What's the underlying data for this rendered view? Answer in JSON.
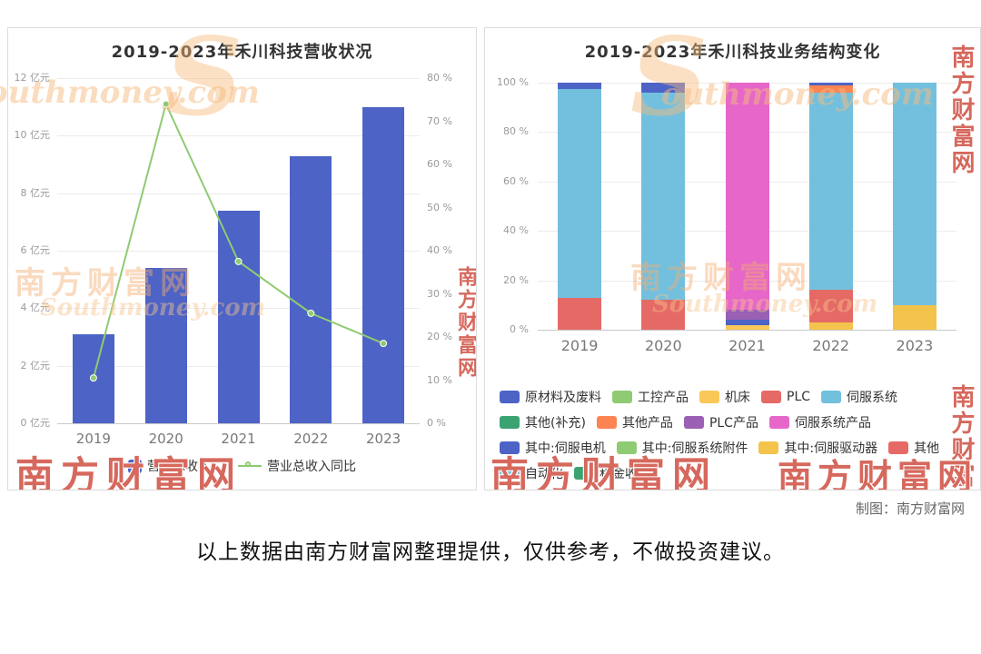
{
  "watermark": {
    "brand_cn": "南方财富网",
    "brand_en": "Southmoney.com",
    "brand_en_partial": "outhmoney.com",
    "s_glyph": "S"
  },
  "footer": {
    "credit": "制图：南方财富网",
    "disclaimer": "以上数据由南方财富网整理提供，仅供参考，不做投资建议。"
  },
  "chart_data": [
    {
      "type": "bar",
      "title": "2019-2023年禾川科技营收状况",
      "categories": [
        "2019",
        "2020",
        "2021",
        "2022",
        "2023"
      ],
      "series": [
        {
          "name": "营业总收入",
          "kind": "bar",
          "unit": "亿元",
          "axis": "left",
          "color": "#4D63C6",
          "values": [
            3.1,
            5.4,
            7.4,
            9.3,
            11.0
          ]
        },
        {
          "name": "营业总收入同比",
          "kind": "line",
          "unit": "%",
          "axis": "right",
          "color": "#8FCB72",
          "values": [
            10.5,
            74,
            37.5,
            25.5,
            18.5
          ]
        }
      ],
      "left_axis": {
        "min": 0,
        "max": 12,
        "ticks": [
          "0 亿元",
          "2 亿元",
          "4 亿元",
          "6 亿元",
          "8 亿元",
          "10 亿元",
          "12 亿元"
        ]
      },
      "right_axis": {
        "min": 0,
        "max": 80,
        "ticks": [
          "0 %",
          "10 %",
          "20 %",
          "30 %",
          "40 %",
          "50 %",
          "60 %",
          "70 %",
          "80 %"
        ]
      },
      "legend": [
        {
          "label": "营业总收入",
          "color": "#4D63C6",
          "marker": "square"
        },
        {
          "label": "营业总收入同比",
          "color": "#8FCB72",
          "marker": "line-circle"
        }
      ],
      "grid": true,
      "legend_position": "bottom"
    },
    {
      "type": "bar",
      "stacked": true,
      "percent": true,
      "title": "2019-2023年禾川科技业务结构变化",
      "categories": [
        "2019",
        "2020",
        "2021",
        "2022",
        "2023"
      ],
      "y_axis": {
        "min": 0,
        "max": 100,
        "ticks": [
          "0 %",
          "20 %",
          "40 %",
          "60 %",
          "80 %",
          "100 %"
        ]
      },
      "legend": [
        {
          "label": "原材料及废料",
          "color": "#4D63C6"
        },
        {
          "label": "工控产品",
          "color": "#8FCB72"
        },
        {
          "label": "机床",
          "color": "#FAC858"
        },
        {
          "label": "PLC",
          "color": "#E56A66"
        },
        {
          "label": "伺服系统",
          "color": "#73C0DE"
        },
        {
          "label": "其他(补充)",
          "color": "#3BA272"
        },
        {
          "label": "其他产品",
          "color": "#FC8452"
        },
        {
          "label": "PLC产品",
          "color": "#9A60B4"
        },
        {
          "label": "伺服系统产品",
          "color": "#E667C9"
        },
        {
          "label": "其中:伺服电机",
          "color": "#4D63C6"
        },
        {
          "label": "其中:伺服系统附件",
          "color": "#8FCB72"
        },
        {
          "label": "其中:伺服驱动器",
          "color": "#F3C34B"
        },
        {
          "label": "其他",
          "color": "#E56A66"
        },
        {
          "label": "自动化",
          "color": "#73C0DE"
        },
        {
          "label": "租金收入",
          "color": "#3BA272"
        }
      ],
      "bars": [
        {
          "year": "2019",
          "segments": [
            {
              "name": "PLC",
              "color": "#E56A66",
              "value": 13
            },
            {
              "name": "伺服系统",
              "color": "#73C0DE",
              "value": 84.5
            },
            {
              "name": "原材料及废料",
              "color": "#4D63C6",
              "value": 2.5
            }
          ]
        },
        {
          "year": "2020",
          "segments": [
            {
              "name": "PLC",
              "color": "#E56A66",
              "value": 12
            },
            {
              "name": "伺服系统",
              "color": "#73C0DE",
              "value": 84
            },
            {
              "name": "原材料及废料",
              "color": "#4D63C6",
              "value": 4
            }
          ]
        },
        {
          "year": "2021",
          "segments": [
            {
              "name": "机床",
              "color": "#FAC858",
              "value": 2
            },
            {
              "name": "其中:伺服电机",
              "color": "#4D63C6",
              "value": 2
            },
            {
              "name": "PLC产品",
              "color": "#9A60B4",
              "value": 4
            },
            {
              "name": "伺服系统产品",
              "color": "#E667C9",
              "value": 92
            }
          ]
        },
        {
          "year": "2022",
          "segments": [
            {
              "name": "其中:伺服驱动器",
              "color": "#F3C34B",
              "value": 3
            },
            {
              "name": "其他",
              "color": "#E56A66",
              "value": 13
            },
            {
              "name": "自动化",
              "color": "#73C0DE",
              "value": 80
            },
            {
              "name": "其他产品",
              "color": "#FC8452",
              "value": 3
            },
            {
              "name": "原材料及废料",
              "color": "#4D63C6",
              "value": 1
            }
          ]
        },
        {
          "year": "2023",
          "segments": [
            {
              "name": "其中:伺服驱动器",
              "color": "#F3C34B",
              "value": 10
            },
            {
              "name": "自动化",
              "color": "#73C0DE",
              "value": 90
            }
          ]
        }
      ],
      "grid": true,
      "legend_position": "bottom"
    }
  ]
}
